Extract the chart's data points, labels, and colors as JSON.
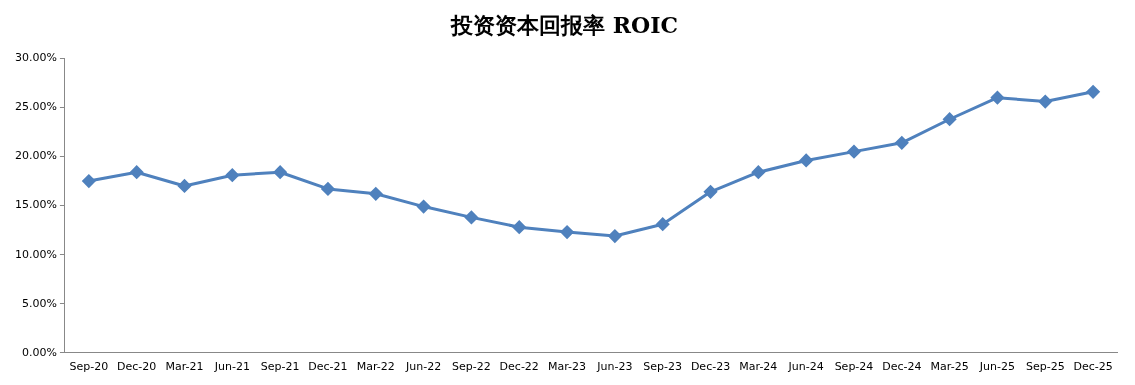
{
  "chart_data": {
    "type": "line",
    "title": "投资资本回报率 ROIC",
    "categories": [
      "Sep-20",
      "Dec-20",
      "Mar-21",
      "Jun-21",
      "Sep-21",
      "Dec-21",
      "Mar-22",
      "Jun-22",
      "Sep-22",
      "Dec-22",
      "Mar-23",
      "Jun-23",
      "Sep-23",
      "Dec-23",
      "Mar-24",
      "Jun-24",
      "Sep-24",
      "Dec-24",
      "Mar-25",
      "Jun-25",
      "Sep-25",
      "Dec-25"
    ],
    "series": [
      {
        "color": "#4f81bd",
        "values": [
          17.5,
          18.4,
          17.0,
          18.1,
          18.4,
          16.7,
          16.2,
          14.9,
          13.8,
          12.8,
          12.3,
          11.9,
          13.1,
          16.4,
          18.4,
          19.6,
          20.5,
          21.4,
          23.8,
          26.0,
          25.6,
          26.6
        ]
      }
    ],
    "ylim": [
      0,
      30
    ],
    "yticks": [
      {
        "value": 0,
        "label": "0.00%"
      },
      {
        "value": 5,
        "label": "5.00%"
      },
      {
        "value": 10,
        "label": "10.00%"
      },
      {
        "value": 15,
        "label": "15.00%"
      },
      {
        "value": 20,
        "label": "20.00%"
      },
      {
        "value": 25,
        "label": "25.00%"
      },
      {
        "value": 30,
        "label": "30.00%"
      }
    ],
    "grid": false,
    "legend": false,
    "marker": "diamond",
    "line_style": "solid"
  }
}
